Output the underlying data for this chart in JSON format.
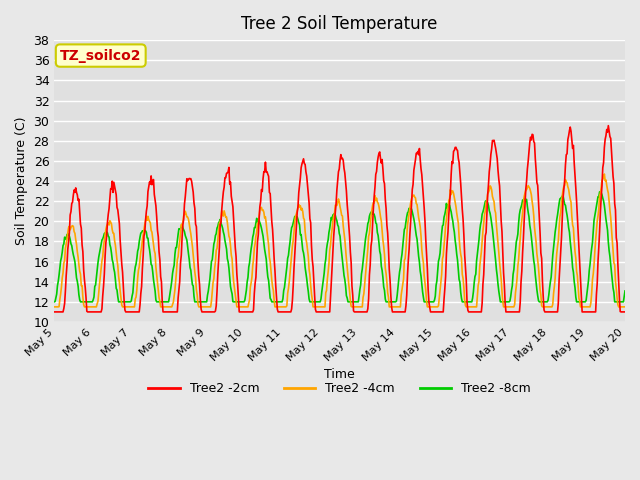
{
  "title": "Tree 2 Soil Temperature",
  "xlabel": "Time",
  "ylabel": "Soil Temperature (C)",
  "ylim": [
    10,
    38
  ],
  "yticks": [
    10,
    12,
    14,
    16,
    18,
    20,
    22,
    24,
    26,
    28,
    30,
    32,
    34,
    36,
    38
  ],
  "line_colors": [
    "#ff0000",
    "#ffa500",
    "#00cc00"
  ],
  "line_labels": [
    "Tree2 -2cm",
    "Tree2 -4cm",
    "Tree2 -8cm"
  ],
  "line_width": 1.2,
  "background_color": "#e8e8e8",
  "plot_bg_color": "#e0e0e0",
  "grid_color": "#ffffff",
  "annotation_text": "TZ_soilco2",
  "annotation_bg": "#ffffcc",
  "annotation_border": "#cccc00",
  "annotation_text_color": "#cc0000",
  "x_tick_labels": [
    "May 5",
    "May 6",
    "May 7",
    "May 8",
    "May 9",
    "May 10",
    "May 11",
    "May 12",
    "May 13",
    "May 14",
    "May 15",
    "May 16",
    "May 17",
    "May 18",
    "May 19",
    "May 20"
  ],
  "num_days": 15,
  "points_per_day": 48
}
